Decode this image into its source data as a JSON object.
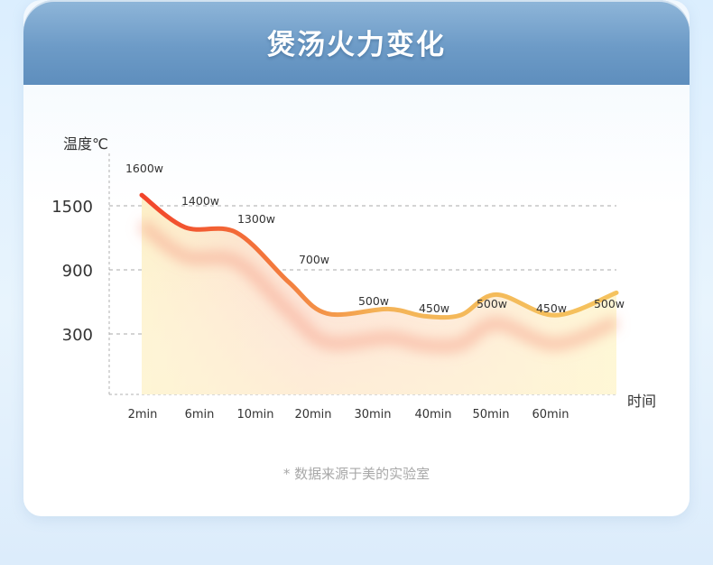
{
  "header": {
    "title": "煲汤火力变化"
  },
  "footnote": "* 数据来源于美的实验室",
  "colors": {
    "header_blue": "#6d9bc7",
    "line_start": "#f2482a",
    "line_end": "#f5c060",
    "area_warm": "#fbd3c8",
    "area_yellow": "#fdf2c4",
    "grid": "#a9a9a9"
  },
  "chart_data": {
    "type": "area",
    "ylabel": "温度℃",
    "xlabel": "时间",
    "y_ticks": [
      1500,
      900,
      300
    ],
    "x_ticks": [
      "2min",
      "6min",
      "10min",
      "20min",
      "30min",
      "40min",
      "50min",
      "60min"
    ],
    "grid": "dashed horizontal at y ticks",
    "series": [
      {
        "points": [
          {
            "label": "1600w",
            "value": 1600
          },
          {
            "label": "1400w",
            "value": 1400
          },
          {
            "label": "1300w",
            "value": 1300
          },
          {
            "label": "700w",
            "value": 700
          },
          {
            "label": "500w",
            "value": 500
          },
          {
            "label": "450w",
            "value": 450
          },
          {
            "label": "500w",
            "value": 500
          },
          {
            "label": "450w",
            "value": 450
          },
          {
            "label": "500w",
            "value": 500
          }
        ]
      }
    ]
  }
}
